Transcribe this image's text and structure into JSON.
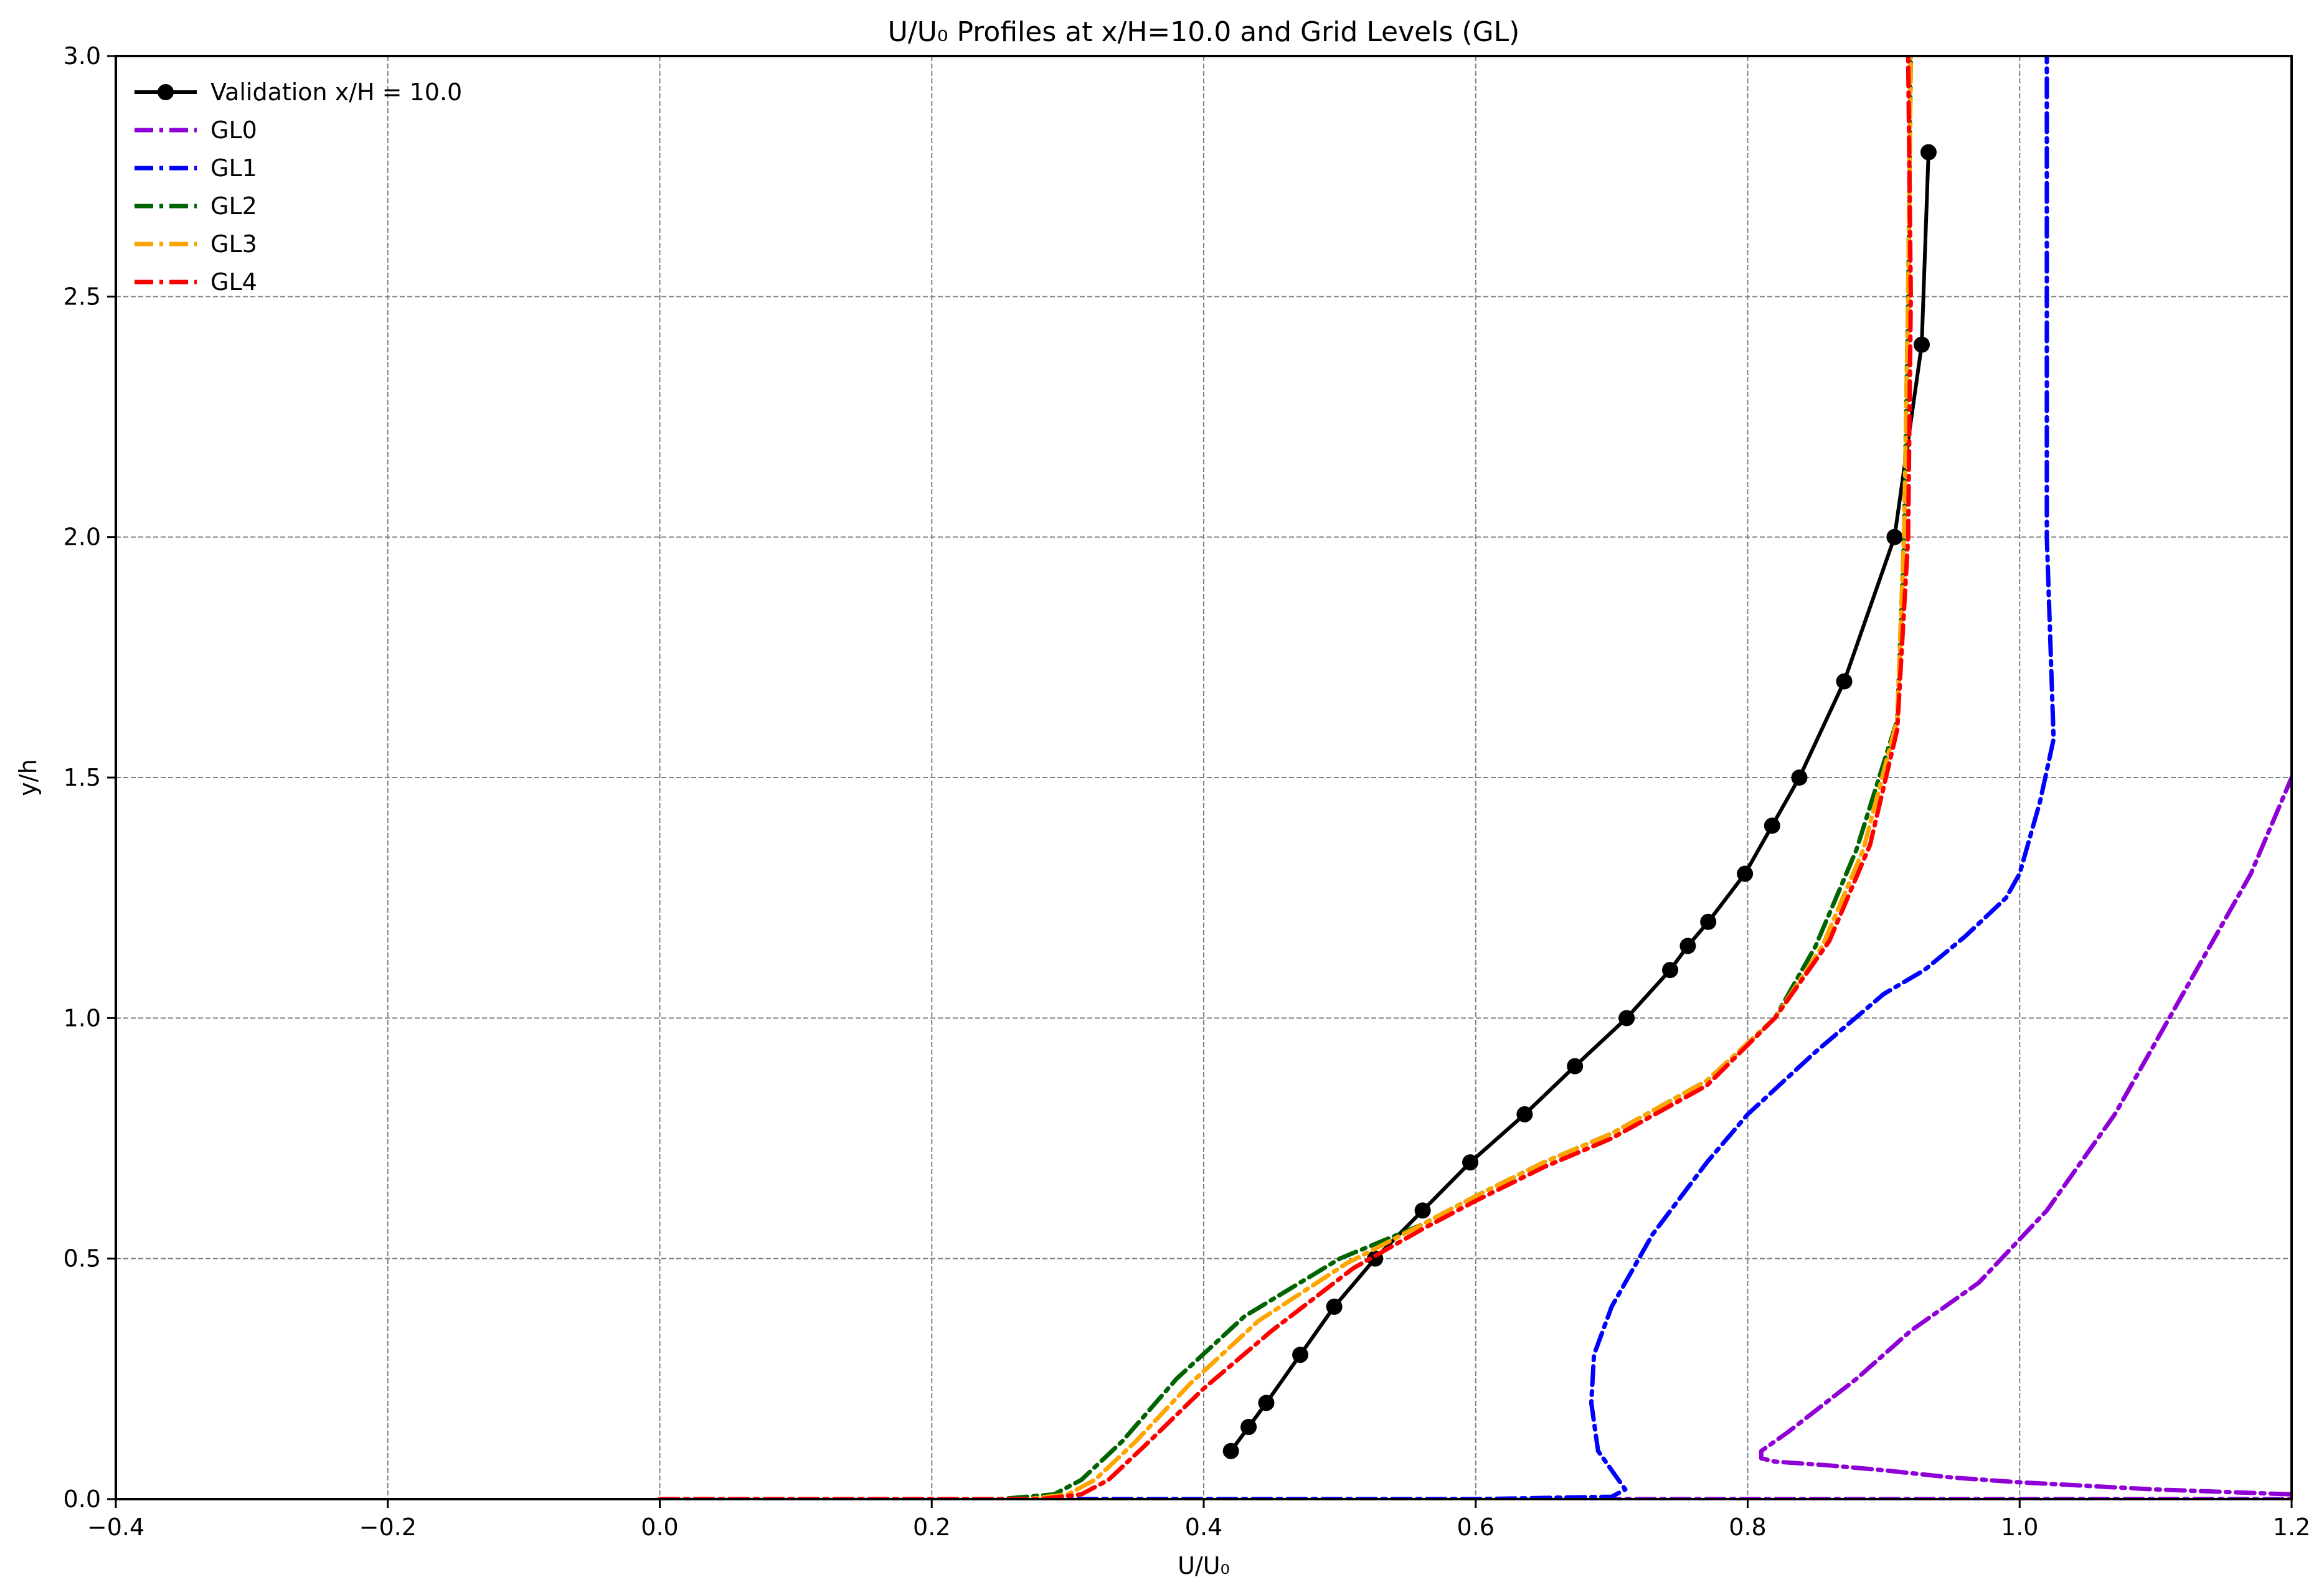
{
  "chart_data": {
    "type": "line",
    "title": "U/U₀ Profiles at x/H=10.0 and Grid Levels (GL)",
    "xlabel": "U/U₀",
    "ylabel": "y/h",
    "xlim": [
      -0.4,
      1.2
    ],
    "ylim": [
      0.0,
      3.0
    ],
    "xticks": [
      -0.4,
      -0.2,
      0.0,
      0.2,
      0.4,
      0.6,
      0.8,
      1.0,
      1.2
    ],
    "xtick_labels": [
      "−0.4",
      "−0.2",
      "0.0",
      "0.2",
      "0.4",
      "0.6",
      "0.8",
      "1.0",
      "1.2"
    ],
    "yticks": [
      0.0,
      0.5,
      1.0,
      1.5,
      2.0,
      2.5,
      3.0
    ],
    "ytick_labels": [
      "0.0",
      "0.5",
      "1.0",
      "1.5",
      "2.0",
      "2.5",
      "3.0"
    ],
    "grid": true,
    "legend_position": "top-left",
    "series": [
      {
        "name": "Validation x/H = 10.0",
        "color": "#000000",
        "style": "solid-markers",
        "x": [
          0.42,
          0.433,
          0.446,
          0.471,
          0.496,
          0.526,
          0.561,
          0.596,
          0.636,
          0.673,
          0.711,
          0.743,
          0.756,
          0.771,
          0.798,
          0.818,
          0.838,
          0.871,
          0.908,
          0.928,
          0.933
        ],
        "y": [
          0.1,
          0.15,
          0.2,
          0.3,
          0.4,
          0.5,
          0.6,
          0.7,
          0.8,
          0.9,
          1.0,
          1.1,
          1.15,
          1.2,
          1.3,
          1.4,
          1.5,
          1.7,
          2.0,
          2.4,
          2.8
        ]
      },
      {
        "name": "GL0",
        "color": "#8f00d6",
        "style": "dashdot",
        "x": [
          0.0,
          0.5,
          1.0,
          1.15,
          1.2,
          1.2,
          1.1,
          1.0,
          0.95,
          0.9,
          0.86,
          0.82,
          0.81,
          0.81,
          0.83,
          0.88,
          0.92,
          0.97,
          1.02,
          1.07,
          1.11,
          1.14,
          1.17,
          1.2
        ],
        "y": [
          0.0,
          0.0,
          0.0,
          0.0,
          0.0,
          0.01,
          0.02,
          0.035,
          0.045,
          0.06,
          0.07,
          0.078,
          0.085,
          0.1,
          0.14,
          0.25,
          0.35,
          0.45,
          0.6,
          0.8,
          1.0,
          1.15,
          1.3,
          1.5
        ]
      },
      {
        "name": "GL1",
        "color": "#0000ff",
        "style": "dashdot",
        "x": [
          0.0,
          0.3,
          0.6,
          0.7,
          0.71,
          0.7,
          0.69,
          0.685,
          0.687,
          0.7,
          0.73,
          0.77,
          0.8,
          0.85,
          0.9,
          0.93,
          0.96,
          0.99,
          1.0,
          1.015,
          1.025,
          1.02,
          1.02,
          1.02
        ],
        "y": [
          0.0,
          0.0,
          0.0,
          0.005,
          0.02,
          0.06,
          0.1,
          0.2,
          0.3,
          0.4,
          0.55,
          0.7,
          0.8,
          0.93,
          1.05,
          1.1,
          1.17,
          1.25,
          1.3,
          1.45,
          1.58,
          2.0,
          2.5,
          3.0
        ]
      },
      {
        "name": "GL2",
        "color": "#006400",
        "style": "dashdot",
        "x": [
          0.0,
          0.25,
          0.29,
          0.31,
          0.34,
          0.38,
          0.43,
          0.5,
          0.56,
          0.6,
          0.65,
          0.7,
          0.77,
          0.82,
          0.85,
          0.88,
          0.91,
          0.915,
          0.918,
          0.92
        ],
        "y": [
          0.0,
          0.0,
          0.01,
          0.04,
          0.12,
          0.25,
          0.38,
          0.5,
          0.57,
          0.63,
          0.7,
          0.76,
          0.87,
          1.0,
          1.15,
          1.35,
          1.62,
          2.0,
          2.5,
          3.0
        ]
      },
      {
        "name": "GL3",
        "color": "#ffa500",
        "style": "dashdot",
        "x": [
          0.0,
          0.27,
          0.3,
          0.32,
          0.35,
          0.39,
          0.44,
          0.505,
          0.56,
          0.6,
          0.65,
          0.7,
          0.77,
          0.82,
          0.855,
          0.885,
          0.91,
          0.915,
          0.918,
          0.92
        ],
        "y": [
          0.0,
          0.0,
          0.01,
          0.04,
          0.12,
          0.24,
          0.37,
          0.49,
          0.57,
          0.63,
          0.7,
          0.76,
          0.87,
          1.0,
          1.15,
          1.35,
          1.62,
          2.0,
          2.5,
          3.0
        ]
      },
      {
        "name": "GL4",
        "color": "#ff0000",
        "style": "dashdot",
        "x": [
          0.0,
          0.28,
          0.31,
          0.33,
          0.36,
          0.4,
          0.45,
          0.51,
          0.56,
          0.6,
          0.65,
          0.7,
          0.77,
          0.82,
          0.86,
          0.89,
          0.91,
          0.918,
          0.92,
          0.918
        ],
        "y": [
          0.0,
          0.0,
          0.01,
          0.04,
          0.12,
          0.23,
          0.35,
          0.48,
          0.56,
          0.62,
          0.69,
          0.75,
          0.86,
          1.0,
          1.16,
          1.36,
          1.6,
          2.0,
          2.5,
          3.0
        ]
      }
    ]
  }
}
